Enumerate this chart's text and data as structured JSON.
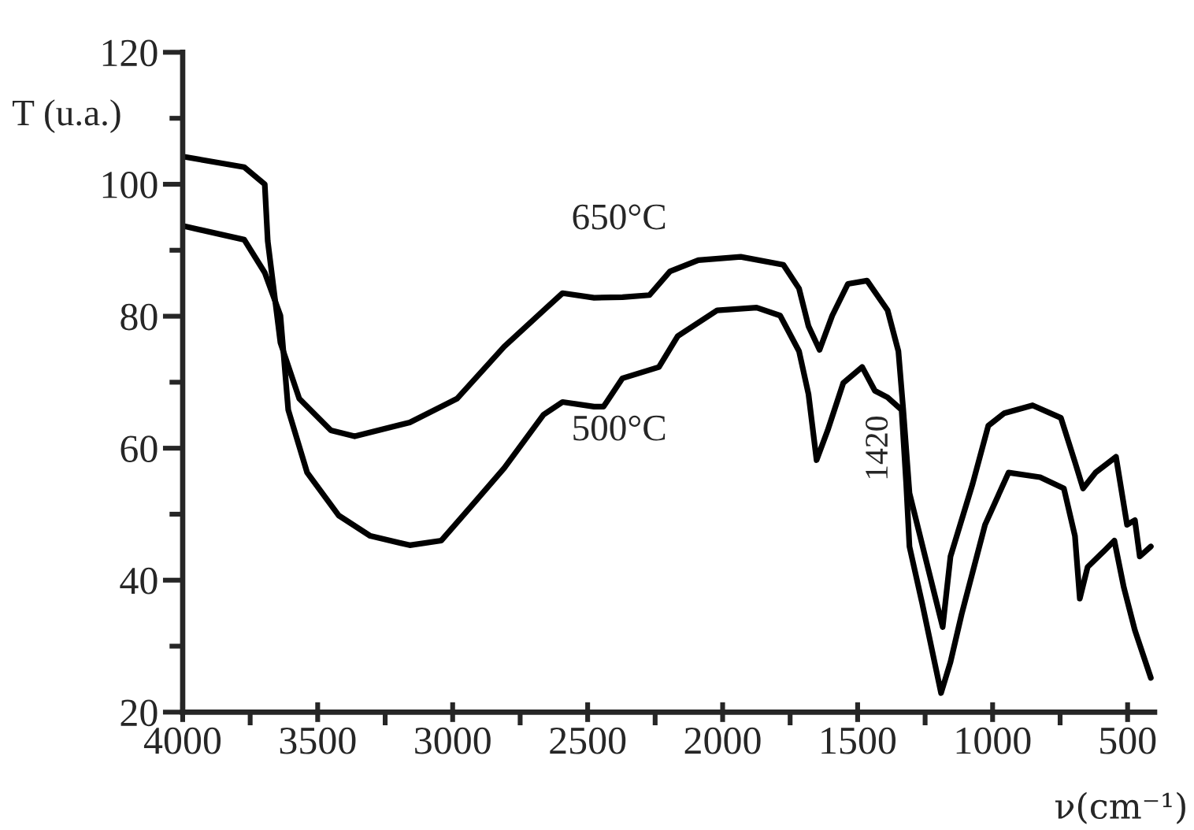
{
  "chart_data": {
    "type": "line",
    "xlabel": "ν(cm⁻¹)",
    "ylabel": "T (u.a.)",
    "xlim": [
      4000,
      400
    ],
    "ylim": [
      20,
      120
    ],
    "xticks": [
      4000,
      {
        "value": 3750,
        "label": null
      },
      3500,
      {
        "value": 3250,
        "label": null
      },
      3000,
      {
        "value": 2750,
        "label": null
      },
      2500,
      {
        "value": 2250,
        "label": null
      },
      2000,
      {
        "value": 1750,
        "label": null
      },
      1500,
      {
        "value": 1250,
        "label": null
      },
      1000,
      {
        "value": 750,
        "label": null
      },
      500
    ],
    "yticks": [
      20,
      {
        "value": 30,
        "label": null
      },
      40,
      {
        "value": 50,
        "label": null
      },
      60,
      {
        "value": 70,
        "label": null
      },
      80,
      {
        "value": 90,
        "label": null
      },
      100,
      {
        "value": 110,
        "label": null
      },
      120
    ],
    "grid": false,
    "legend": false,
    "marker": "none",
    "line_style": "solid",
    "annotations": [
      "1420"
    ],
    "series": [
      {
        "name": "650°C",
        "color": "#000000",
        "x": [
          4000,
          3772,
          3696,
          3685,
          3638,
          3568,
          3451,
          3363,
          3159,
          2984,
          2809,
          2663,
          2593,
          2476,
          2371,
          2271,
          2195,
          2090,
          1933,
          1775,
          1717,
          1682,
          1641,
          1594,
          1536,
          1465,
          1389,
          1349,
          1331,
          1308,
          1250,
          1185,
          1156,
          1074,
          1016,
          957,
          852,
          747,
          695,
          665,
          619,
          543,
          502,
          473,
          455,
          414
        ],
        "values": [
          104.2,
          102.6,
          100,
          91.4,
          76,
          67.5,
          62.7,
          61.8,
          63.9,
          67.5,
          75.4,
          80.9,
          83.5,
          82.8,
          82.9,
          83.2,
          86.8,
          88.5,
          89,
          87.8,
          84.2,
          78.5,
          74.9,
          80.1,
          84.9,
          85.4,
          80.9,
          74.7,
          65.8,
          53.2,
          43.6,
          32.9,
          43.6,
          54.6,
          63.4,
          65.3,
          66.5,
          64.6,
          57.9,
          53.9,
          56.3,
          58.7,
          48.4,
          49.1,
          43.6,
          45.1
        ]
      },
      {
        "name": "500°C",
        "color": "#000000",
        "x": [
          4000,
          3772,
          3696,
          3638,
          3609,
          3539,
          3422,
          3305,
          3159,
          3042,
          2925,
          2809,
          2663,
          2593,
          2476,
          2441,
          2371,
          2236,
          2166,
          2020,
          1874,
          1787,
          1717,
          1682,
          1652,
          1611,
          1553,
          1483,
          1436,
          1389,
          1337,
          1320,
          1308,
          1261,
          1191,
          1156,
          1115,
          1028,
          941,
          824,
          736,
          695,
          677,
          648,
          590,
          549,
          514,
          473,
          414
        ],
        "values": [
          93.7,
          91.6,
          86.6,
          80.1,
          65.8,
          56.3,
          49.8,
          46.7,
          45.3,
          46,
          51.5,
          57,
          65.1,
          67,
          66.3,
          66.3,
          70.6,
          72.3,
          77,
          80.9,
          81.3,
          80.1,
          74.7,
          68.2,
          58.2,
          62.7,
          69.9,
          72.3,
          68.7,
          67.7,
          65.8,
          54.6,
          45.1,
          36.5,
          22.9,
          27.6,
          34.8,
          48.4,
          56.3,
          55.6,
          53.9,
          46.7,
          37.2,
          42,
          44.3,
          46,
          38.9,
          32.4,
          25.2
        ]
      }
    ]
  }
}
